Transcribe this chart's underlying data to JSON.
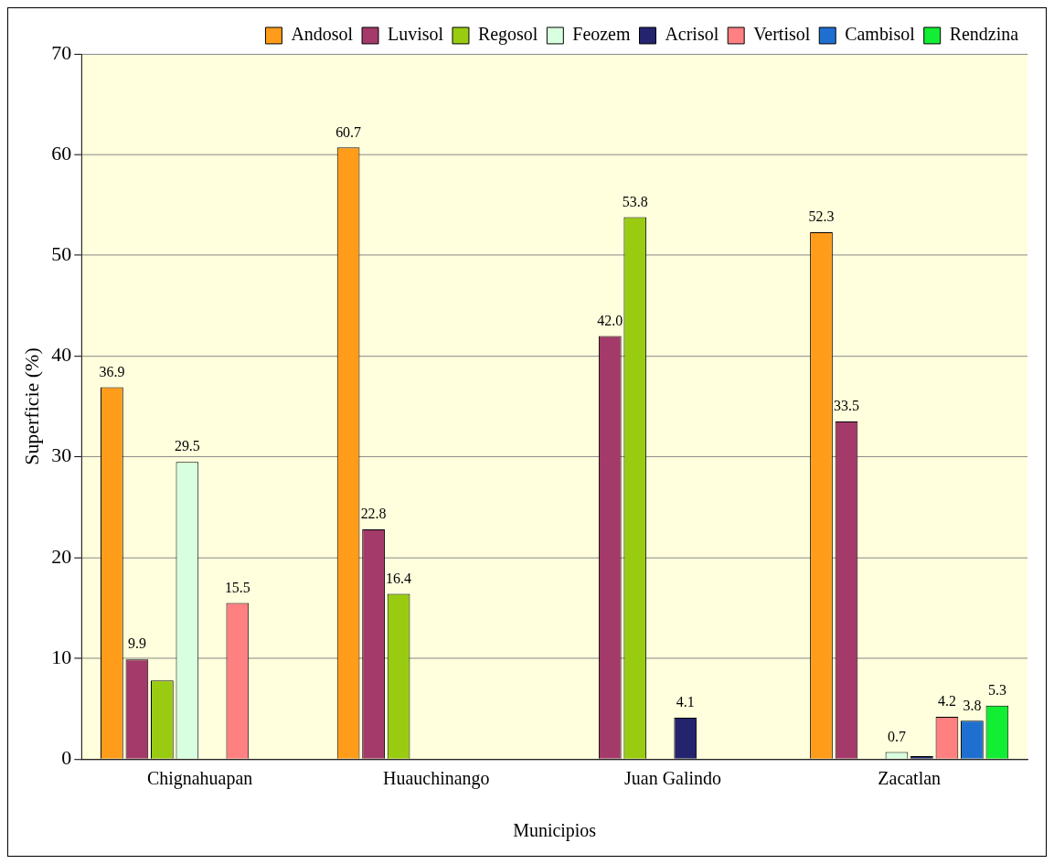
{
  "chart_data": {
    "type": "bar",
    "xlabel": "Municipios",
    "ylabel": "Superficie (%)",
    "categories": [
      "Chignahuapan",
      "Huauchinango",
      "Juan Galindo",
      "Zacatlan"
    ],
    "series": [
      {
        "name": "Andosol",
        "color": "#ff9c1a",
        "values": [
          36.9,
          60.7,
          null,
          52.3
        ],
        "value_labels": [
          "36.9",
          "60.7",
          null,
          "52.3"
        ]
      },
      {
        "name": "Luvisol",
        "color": "#a33a6a",
        "values": [
          9.9,
          22.8,
          42.0,
          33.5
        ],
        "value_labels": [
          "9.9",
          "22.8",
          "42.0",
          "33.5"
        ]
      },
      {
        "name": "Regosol",
        "color": "#99cc11",
        "values": [
          7.8,
          16.4,
          53.8,
          null
        ],
        "value_labels": [
          null,
          "16.4",
          "53.8",
          null
        ]
      },
      {
        "name": "Feozem",
        "color": "#d8ffe0",
        "values": [
          29.5,
          null,
          null,
          0.7
        ],
        "value_labels": [
          "29.5",
          null,
          null,
          "0.7"
        ]
      },
      {
        "name": "Acrisol",
        "color": "#23236e",
        "values": [
          null,
          null,
          4.1,
          0.3
        ],
        "value_labels": [
          null,
          null,
          "4.1",
          null
        ]
      },
      {
        "name": "Vertisol",
        "color": "#ff8080",
        "values": [
          15.5,
          null,
          null,
          4.2
        ],
        "value_labels": [
          "15.5",
          null,
          null,
          "4.2"
        ]
      },
      {
        "name": "Cambisol",
        "color": "#1f6fd0",
        "values": [
          null,
          null,
          null,
          3.8
        ],
        "value_labels": [
          null,
          null,
          null,
          "3.8"
        ]
      },
      {
        "name": "Rendzina",
        "color": "#11ee33",
        "values": [
          null,
          null,
          null,
          5.3
        ],
        "value_labels": [
          null,
          null,
          null,
          "5.3"
        ]
      }
    ],
    "ylim": [
      0,
      70
    ],
    "yticks": [
      0,
      10,
      20,
      30,
      40,
      50,
      60,
      70
    ],
    "grid": "y",
    "legend": "top right"
  }
}
